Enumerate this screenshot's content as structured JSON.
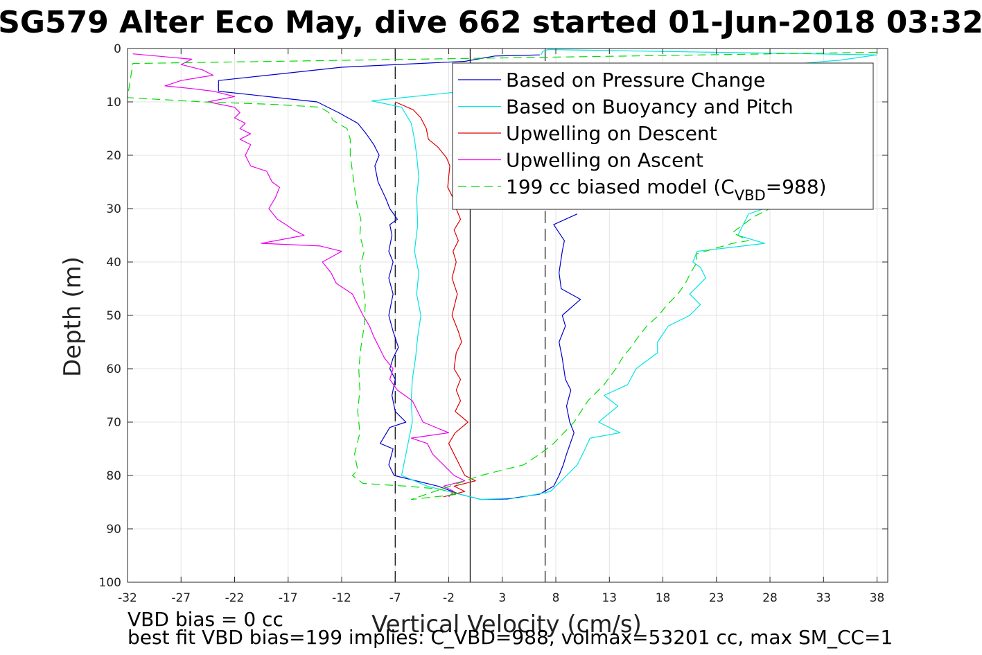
{
  "chart_data": {
    "type": "line",
    "title": "SG579 Alter Eco May, dive 662 started 01-Jun-2018 03:32",
    "xlabel": "Vertical Velocity (cm/s)",
    "ylabel": "Depth (m)",
    "xlim": [
      -32,
      39
    ],
    "ylim": [
      0,
      100
    ],
    "y_reversed": true,
    "grid": true,
    "xticks": [
      -32,
      -27,
      -22,
      -17,
      -12,
      -7,
      -2,
      3,
      8,
      13,
      18,
      23,
      28,
      33,
      38
    ],
    "yticks": [
      0,
      10,
      20,
      30,
      40,
      50,
      60,
      70,
      80,
      90,
      100
    ],
    "legend_placement": "top-right",
    "reference_lines": [
      {
        "x": -7,
        "style": "dashed",
        "color": "#000000"
      },
      {
        "x": 0,
        "style": "solid",
        "color": "#000000"
      },
      {
        "x": 7,
        "style": "dashed",
        "color": "#000000"
      }
    ],
    "notes": [
      "VBD bias = 0 cc",
      "best fit VBD bias=199 implies: C_VBD=988, volmax=53201 cc, max SM_CC=1"
    ],
    "series": [
      {
        "name": "Based on Pressure Change",
        "color": "#0000cc",
        "style": "solid",
        "points": [
          [
            6.5,
            1.2
          ],
          [
            2.3,
            1.4
          ],
          [
            -0.5,
            2.4
          ],
          [
            -12,
            3.5
          ],
          [
            -23.5,
            6
          ],
          [
            -23.5,
            8
          ],
          [
            -14.3,
            10
          ],
          [
            -12.3,
            12
          ],
          [
            -10.5,
            14
          ],
          [
            -9.7,
            16
          ],
          [
            -9,
            18
          ],
          [
            -8.5,
            20
          ],
          [
            -8.9,
            22
          ],
          [
            -8.6,
            25
          ],
          [
            -7.9,
            28
          ],
          [
            -7.5,
            30
          ],
          [
            -6.8,
            32
          ],
          [
            -7.5,
            33
          ],
          [
            -7.3,
            35
          ],
          [
            -7.6,
            38
          ],
          [
            -7.2,
            40
          ],
          [
            -7.6,
            43
          ],
          [
            -7.2,
            46
          ],
          [
            -7.6,
            50
          ],
          [
            -7.2,
            53
          ],
          [
            -6.7,
            56
          ],
          [
            -7.2,
            58
          ],
          [
            -7.5,
            60
          ],
          [
            -7.0,
            62
          ],
          [
            -7.3,
            65
          ],
          [
            -7.0,
            68
          ],
          [
            -6.0,
            70
          ],
          [
            -7.5,
            71
          ],
          [
            -8.4,
            74
          ],
          [
            -7.2,
            75
          ],
          [
            -7.6,
            78
          ],
          [
            -7.1,
            80
          ],
          [
            -3,
            82
          ],
          [
            -1,
            83.5
          ],
          [
            1,
            84.5
          ],
          [
            3.5,
            84.4
          ],
          [
            6.5,
            83.5
          ],
          [
            7.8,
            82
          ],
          [
            8.3,
            80
          ],
          [
            8.7,
            78
          ],
          [
            9,
            76
          ],
          [
            9.7,
            72
          ],
          [
            9.3,
            70
          ],
          [
            9,
            67
          ],
          [
            9.4,
            64
          ],
          [
            8.9,
            62
          ],
          [
            8.6,
            58
          ],
          [
            8.3,
            55
          ],
          [
            8.9,
            52
          ],
          [
            8.6,
            50
          ],
          [
            10.3,
            47
          ],
          [
            8.5,
            45
          ],
          [
            8.3,
            42
          ],
          [
            8.6,
            38
          ],
          [
            8.8,
            36
          ],
          [
            7.8,
            33
          ],
          [
            10,
            31
          ]
        ]
      },
      {
        "name": "Based on Buoyancy and Pitch",
        "color": "#00e5e5",
        "style": "solid",
        "points": [
          [
            6.6,
            1.2
          ],
          [
            6.8,
            0.5
          ],
          [
            7.3,
            0.2
          ],
          [
            38,
            1.2
          ],
          [
            34.5,
            2.2
          ],
          [
            -0.5,
            8.0
          ],
          [
            -9.2,
            9.8
          ],
          [
            -6.4,
            11
          ],
          [
            -5.5,
            14
          ],
          [
            -5.2,
            17
          ],
          [
            -5.0,
            20
          ],
          [
            -4.8,
            24
          ],
          [
            -5.0,
            28
          ],
          [
            -4.9,
            33
          ],
          [
            -5.2,
            38
          ],
          [
            -4.8,
            42
          ],
          [
            -5.0,
            46
          ],
          [
            -4.6,
            50
          ],
          [
            -4.9,
            54
          ],
          [
            -5.1,
            58
          ],
          [
            -5.4,
            62
          ],
          [
            -5.5,
            66
          ],
          [
            -5.4,
            70
          ],
          [
            -5.8,
            74
          ],
          [
            -6.1,
            77
          ],
          [
            -6.4,
            80
          ],
          [
            -4,
            82
          ],
          [
            -1,
            83.5
          ],
          [
            1,
            84.5
          ],
          [
            4.5,
            84.2
          ],
          [
            7.5,
            83
          ],
          [
            9,
            80
          ],
          [
            10,
            78
          ],
          [
            10.5,
            76
          ],
          [
            11.2,
            73
          ],
          [
            14,
            72
          ],
          [
            12,
            70
          ],
          [
            13.8,
            67
          ],
          [
            12.5,
            65
          ],
          [
            14.7,
            63
          ],
          [
            15.5,
            60
          ],
          [
            17.5,
            57
          ],
          [
            17.5,
            55
          ],
          [
            18.5,
            52
          ],
          [
            20.5,
            50
          ],
          [
            21.5,
            48
          ],
          [
            20.5,
            46
          ],
          [
            22,
            43
          ],
          [
            21.5,
            41
          ],
          [
            20.8,
            40
          ],
          [
            21.2,
            38
          ],
          [
            25.5,
            37
          ],
          [
            27.5,
            36.5
          ],
          [
            25,
            35
          ],
          [
            25.5,
            33
          ],
          [
            26,
            31
          ],
          [
            28.2,
            29.5
          ]
        ]
      },
      {
        "name": "Upwelling on Descent",
        "color": "#dd0000",
        "style": "solid",
        "points": [
          [
            -7,
            10
          ],
          [
            -5.3,
            11.5
          ],
          [
            -4.6,
            13
          ],
          [
            -4.1,
            15
          ],
          [
            -3.9,
            17
          ],
          [
            -3.0,
            18.5
          ],
          [
            -2.2,
            20.5
          ],
          [
            -1.9,
            22
          ],
          [
            -2.0,
            24
          ],
          [
            -2.1,
            26
          ],
          [
            -1.6,
            28
          ],
          [
            -1.3,
            30
          ],
          [
            -0.9,
            32
          ],
          [
            -1.5,
            34
          ],
          [
            -1.1,
            36
          ],
          [
            -1.6,
            38
          ],
          [
            -1.3,
            40
          ],
          [
            -1.7,
            43
          ],
          [
            -1.2,
            46
          ],
          [
            -1.7,
            50
          ],
          [
            -1.1,
            53
          ],
          [
            -0.8,
            55
          ],
          [
            -1.3,
            57
          ],
          [
            -1.5,
            60
          ],
          [
            -0.9,
            62
          ],
          [
            -1.3,
            64
          ],
          [
            -0.9,
            66
          ],
          [
            -1.4,
            68
          ],
          [
            -0.2,
            70
          ],
          [
            -1.4,
            72
          ],
          [
            -2,
            74
          ],
          [
            -1.5,
            76
          ],
          [
            -1.0,
            78
          ],
          [
            -0.5,
            80
          ],
          [
            0.5,
            81
          ],
          [
            -1.5,
            82
          ],
          [
            -0.5,
            83
          ],
          [
            -2.5,
            84
          ]
        ]
      },
      {
        "name": "Upwelling on Ascent",
        "color": "#ee00ee",
        "style": "solid",
        "points": [
          [
            -31.5,
            1
          ],
          [
            -26,
            2
          ],
          [
            -27,
            3
          ],
          [
            -25,
            4
          ],
          [
            -24,
            5
          ],
          [
            -27,
            6
          ],
          [
            -28.5,
            7
          ],
          [
            -26,
            7.5
          ],
          [
            -24,
            8
          ],
          [
            -22,
            9
          ],
          [
            -24.5,
            10
          ],
          [
            -22,
            11
          ],
          [
            -21.5,
            12
          ],
          [
            -22,
            13
          ],
          [
            -21,
            14
          ],
          [
            -21.5,
            15
          ],
          [
            -20.5,
            16
          ],
          [
            -21.5,
            17
          ],
          [
            -20.5,
            18
          ],
          [
            -21,
            20
          ],
          [
            -20.5,
            22
          ],
          [
            -19,
            23
          ],
          [
            -18.5,
            25
          ],
          [
            -17.8,
            26
          ],
          [
            -18.2,
            28
          ],
          [
            -18.8,
            30
          ],
          [
            -18.0,
            32
          ],
          [
            -17.2,
            33
          ],
          [
            -16.5,
            34
          ],
          [
            -15.5,
            35
          ],
          [
            -19.5,
            36.5
          ],
          [
            -14,
            37
          ],
          [
            -12,
            38
          ],
          [
            -13.8,
            40
          ],
          [
            -13,
            42
          ],
          [
            -12.5,
            44
          ],
          [
            -11,
            46
          ],
          [
            -10.5,
            48
          ],
          [
            -10.0,
            50
          ],
          [
            -9.4,
            52
          ],
          [
            -9.0,
            54
          ],
          [
            -8.5,
            56
          ],
          [
            -8.0,
            58
          ],
          [
            -7.2,
            60
          ],
          [
            -7.5,
            62
          ],
          [
            -6.8,
            64
          ],
          [
            -5.4,
            66
          ],
          [
            -4.9,
            68
          ],
          [
            -4.4,
            70
          ],
          [
            -2,
            72
          ],
          [
            -5.5,
            73
          ],
          [
            -4.0,
            74
          ],
          [
            -3.5,
            76
          ],
          [
            -2.5,
            78
          ],
          [
            -1.5,
            80
          ],
          [
            -0.5,
            81
          ],
          [
            -2.5,
            82
          ],
          [
            -1.5,
            83
          ],
          [
            -2,
            84
          ]
        ]
      },
      {
        "name": "199 cc biased model (C_VBD=988)",
        "legend_parts": [
          "199 cc biased model (C",
          "VBD",
          "=988)"
        ],
        "color": "#00dd00",
        "style": "dashed",
        "points": [
          [
            38,
            0.7
          ],
          [
            -31.5,
            2.8
          ],
          [
            -32,
            9.2
          ],
          [
            -25,
            10
          ],
          [
            -18,
            10.5
          ],
          [
            -14,
            11
          ],
          [
            -13.2,
            12
          ],
          [
            -12.8,
            13.5
          ],
          [
            -11.5,
            15
          ],
          [
            -11.2,
            17
          ],
          [
            -11.2,
            20
          ],
          [
            -11.0,
            23
          ],
          [
            -10.8,
            26
          ],
          [
            -10.6,
            29
          ],
          [
            -10.2,
            32
          ],
          [
            -10.3,
            35
          ],
          [
            -9.9,
            38
          ],
          [
            -10.3,
            41
          ],
          [
            -10.0,
            44
          ],
          [
            -9.8,
            48
          ],
          [
            -9.9,
            52
          ],
          [
            -10.2,
            56
          ],
          [
            -10.4,
            60
          ],
          [
            -10.3,
            64
          ],
          [
            -10.5,
            68
          ],
          [
            -10.3,
            72
          ],
          [
            -10.8,
            76
          ],
          [
            -10.5,
            79
          ],
          [
            -11,
            80
          ],
          [
            -10,
            81.5
          ],
          [
            -6,
            82
          ],
          [
            -3,
            82.5
          ],
          [
            -1,
            83.5
          ],
          [
            -5.5,
            84.5
          ],
          [
            1,
            80
          ],
          [
            5,
            78
          ],
          [
            6.5,
            76
          ],
          [
            7.8,
            74
          ],
          [
            9.7,
            70
          ],
          [
            11,
            66
          ],
          [
            12.5,
            63
          ],
          [
            13.6,
            60
          ],
          [
            14.2,
            58
          ],
          [
            15.0,
            56
          ],
          [
            15.7,
            54
          ],
          [
            16.5,
            52
          ],
          [
            17.6,
            50
          ],
          [
            18.4,
            48
          ],
          [
            19.4,
            46
          ],
          [
            20.1,
            44
          ],
          [
            20.6,
            42
          ],
          [
            21.2,
            40
          ],
          [
            21.1,
            38.5
          ],
          [
            24.5,
            36.5
          ],
          [
            26,
            36
          ],
          [
            24.5,
            34.5
          ],
          [
            25.5,
            33
          ],
          [
            26.5,
            31.5
          ],
          [
            28,
            30
          ]
        ]
      }
    ]
  }
}
